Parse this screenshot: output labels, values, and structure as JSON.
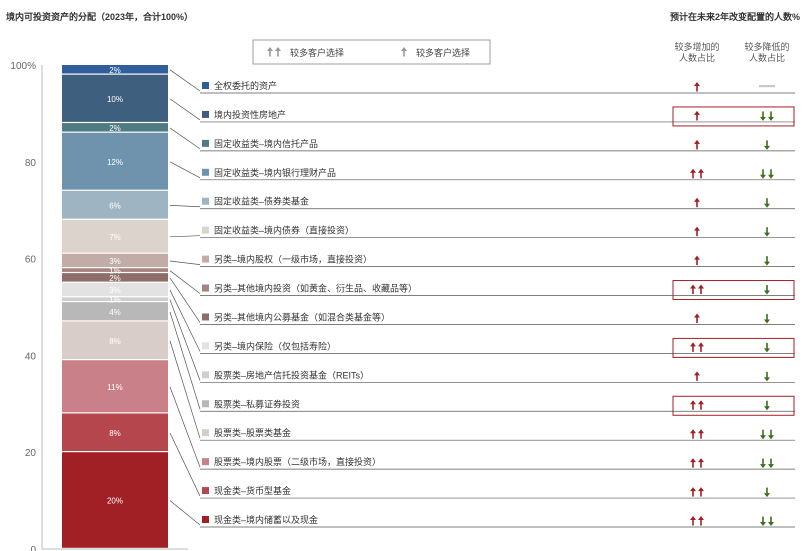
{
  "title": "境内可投资资产的分配（2023年，合计100%）",
  "right_title": "预计在未来2年改变配置的人数%",
  "legend": [
    {
      "label": "较多客户选择",
      "arrows": 2
    },
    {
      "label": "较多客户选择",
      "arrows": 1
    }
  ],
  "column_headers": {
    "increase": [
      "较多增加的",
      "人数占比"
    ],
    "decrease": [
      "较多降低的",
      "人数占比"
    ]
  },
  "colors": {
    "up_arrow": "#a12025",
    "down_arrow": "#3c6e1e",
    "highlight_box": "#a12025"
  },
  "chart_data": {
    "type": "bar",
    "stacked": true,
    "y_ticks": [
      "0",
      "20",
      "40",
      "60",
      "80",
      "100%"
    ],
    "ylim": [
      0,
      100
    ],
    "segments": [
      {
        "name": "现金类–境内储蓄以及现金",
        "value": 20,
        "label": "20%",
        "color": "#a12025",
        "increase": 2,
        "decrease": 2,
        "highlight": false
      },
      {
        "name": "现金类–货币型基金",
        "value": 8,
        "label": "8%",
        "color": "#b5464e",
        "increase": 2,
        "decrease": 1,
        "highlight": false
      },
      {
        "name": "股票类–境内股票（二级市场，直接投资）",
        "value": 11,
        "label": "11%",
        "color": "#c98088",
        "increase": 2,
        "decrease": 2,
        "highlight": false
      },
      {
        "name": "股票类–股票类基金",
        "value": 8,
        "label": "8%",
        "color": "#d9cdc9",
        "increase": 2,
        "decrease": 2,
        "highlight": false
      },
      {
        "name": "股票类–私募证券投资",
        "value": 4,
        "label": "4%",
        "color": "#b8b8b8",
        "increase": 2,
        "decrease": 1,
        "highlight": true
      },
      {
        "name": "股票类–房地产信托投资基金（REITs）",
        "value": 1,
        "label": "1%",
        "color": "#cfcfcf",
        "increase": 1,
        "decrease": 1,
        "highlight": false
      },
      {
        "name": "另类–境内保险（仅包括寿险）",
        "value": 3,
        "label": "3%",
        "color": "#e2e2e2",
        "increase": 2,
        "decrease": 1,
        "highlight": true
      },
      {
        "name": "另类–其他境内公募基金（如混合类基金等）",
        "value": 2,
        "label": "2%",
        "color": "#8f6e6a",
        "increase": 1,
        "decrease": 1,
        "highlight": false
      },
      {
        "name": "另类–其他境内投资（如黄金、衍生品、收藏品等）",
        "value": 1,
        "label": "1%",
        "color": "#a6837f",
        "increase": 2,
        "decrease": 1,
        "highlight": true
      },
      {
        "name": "另类–境内股权（一级市场，直接投资）",
        "value": 3,
        "label": "3%",
        "color": "#c2aca7",
        "increase": 1,
        "decrease": 1,
        "highlight": false
      },
      {
        "name": "固定收益类–境内债券（直接投资）",
        "value": 7,
        "label": "7%",
        "color": "#dcd3cc",
        "increase": 1,
        "decrease": 1,
        "highlight": false
      },
      {
        "name": "固定收益类–债券类基金",
        "value": 6,
        "label": "6%",
        "color": "#9fb4c2",
        "increase": 1,
        "decrease": 1,
        "highlight": false
      },
      {
        "name": "固定收益类–境内银行理财产品",
        "value": 12,
        "label": "12%",
        "color": "#6f92ad",
        "increase": 2,
        "decrease": 2,
        "highlight": false
      },
      {
        "name": "固定收益类–境内信托产品",
        "value": 2,
        "label": "2%",
        "color": "#4f7c82",
        "increase": 1,
        "decrease": 1,
        "highlight": false
      },
      {
        "name": "境内投资性房地产",
        "value": 10,
        "label": "10%",
        "color": "#3f5f7f",
        "increase": 1,
        "decrease": 2,
        "highlight": true
      },
      {
        "name": "全权委托的资产",
        "value": 2,
        "label": "2%",
        "color": "#2f5e9a",
        "increase": 1,
        "decrease": 0,
        "highlight": false
      }
    ]
  }
}
